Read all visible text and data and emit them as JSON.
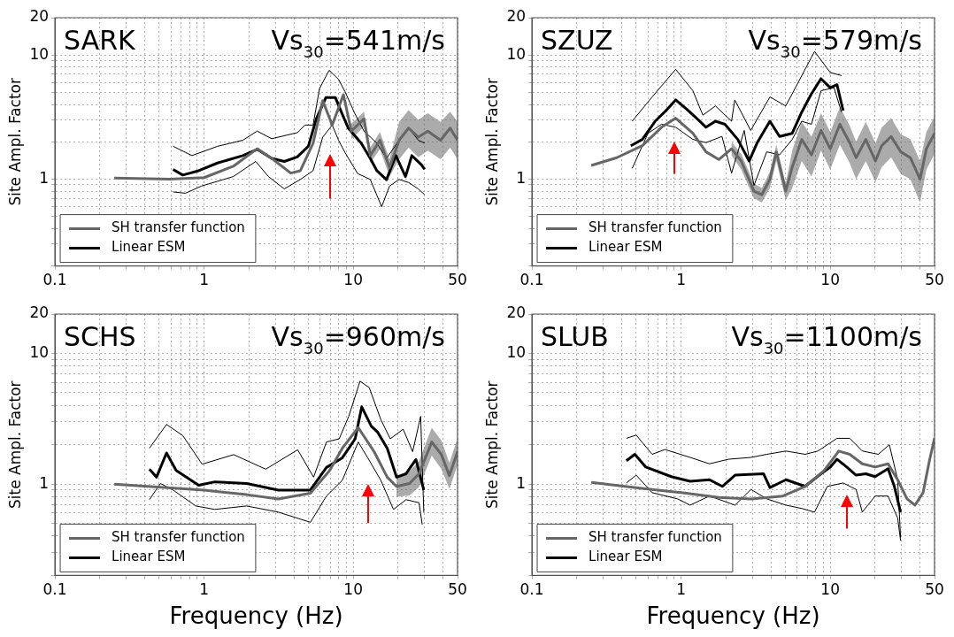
{
  "chart_data": [
    {
      "type": "line",
      "title": "SARK",
      "subtitle": "Vs$_{30}$=541m/s",
      "ylabel": "Site Ampl. Factor",
      "log": "xy",
      "grid": true,
      "legend": "bottom left",
      "xlim": [
        0.1,
        50
      ],
      "xticks": [
        0.1,
        {
          "value": 0.2,
          "label": null
        },
        {
          "value": 0.3,
          "label": null
        },
        {
          "value": 0.4,
          "label": null
        },
        {
          "value": 0.5,
          "label": null
        },
        {
          "value": 0.6,
          "label": null
        },
        {
          "value": 0.7,
          "label": null
        },
        {
          "value": 0.8,
          "label": null
        },
        {
          "value": 0.9,
          "label": null
        },
        1,
        {
          "value": 2,
          "label": null
        },
        {
          "value": 3,
          "label": null
        },
        {
          "value": 4,
          "label": null
        },
        {
          "value": 5,
          "label": null
        },
        {
          "value": 6,
          "label": null
        },
        {
          "value": 7,
          "label": null
        },
        {
          "value": 8,
          "label": null
        },
        {
          "value": 9,
          "label": null
        },
        10,
        {
          "value": 20,
          "label": null
        },
        {
          "value": 30,
          "label": null
        },
        {
          "value": 40,
          "label": null
        },
        50
      ],
      "ylim": [
        0.2,
        20
      ],
      "yticks": [
        {
          "value": 0.2,
          "label": null
        },
        {
          "value": 0.3,
          "label": null
        },
        {
          "value": 0.4,
          "label": null
        },
        {
          "value": 0.5,
          "label": null
        },
        {
          "value": 0.6,
          "label": null
        },
        {
          "value": 0.7,
          "label": null
        },
        {
          "value": 0.8,
          "label": null
        },
        {
          "value": 0.9,
          "label": null
        },
        1,
        {
          "value": 2,
          "label": null
        },
        {
          "value": 3,
          "label": null
        },
        {
          "value": 4,
          "label": null
        },
        {
          "value": 5,
          "label": null
        },
        {
          "value": 6,
          "label": null
        },
        {
          "value": 7,
          "label": null
        },
        {
          "value": 8,
          "label": null
        },
        {
          "value": 9,
          "label": null
        },
        10,
        20
      ],
      "series": [
        {
          "name": "SH transfer function",
          "color": "#666666",
          "x": [
            0.25,
            0.59,
            1.0,
            1.57,
            2.27,
            2.84,
            3.81,
            4.42,
            5.38,
            6.24,
            7.23,
            8.59,
            9.71,
            11.8,
            13,
            15.1,
            17.5,
            20.3,
            23.5,
            27.3,
            31.6,
            38.5,
            44.6,
            50
          ],
          "values": [
            1.02,
            1.0,
            1.03,
            1.27,
            1.76,
            1.47,
            1.12,
            1.17,
            1.95,
            4.29,
            2.73,
            4.8,
            2.44,
            3.06,
            1.55,
            2.06,
            1.24,
            2.06,
            2.58,
            2.18,
            2.44,
            2.06,
            2.58,
            2.06
          ],
          "lower": [
            null,
            null,
            null,
            null,
            null,
            null,
            null,
            null,
            null,
            null,
            null,
            null,
            2.1,
            2.65,
            1.35,
            1.75,
            1.05,
            1.45,
            1.8,
            1.5,
            1.7,
            1.45,
            1.8,
            1.45
          ],
          "upper": [
            null,
            null,
            null,
            null,
            null,
            null,
            null,
            null,
            null,
            null,
            null,
            null,
            2.8,
            3.5,
            1.8,
            2.4,
            1.45,
            2.9,
            3.6,
            3.0,
            3.4,
            2.9,
            3.5,
            2.9
          ]
        },
        {
          "name": "Linear ESM",
          "color": "#000000",
          "x": [
            0.62,
            0.72,
            0.92,
            1.23,
            1.82,
            2.27,
            2.84,
            3.45,
            4.21,
            5.0,
            5.65,
            6.55,
            7.59,
            8.37,
            9.25,
            11.3,
            13.0,
            14.4,
            16.7,
            19.3,
            22.4,
            24.7,
            28.6,
            30.1
          ],
          "values": [
            1.2,
            1.08,
            1.17,
            1.35,
            1.55,
            1.74,
            1.47,
            1.39,
            1.51,
            1.84,
            3.06,
            4.54,
            4.54,
            3.42,
            2.58,
            1.95,
            1.47,
            1.17,
            0.99,
            1.55,
            1.05,
            1.55,
            1.31,
            1.2
          ]
        },
        {
          "color": "#000000",
          "x": [
            0.62,
            0.83,
            1.23,
            1.82,
            2.27,
            2.84,
            4.21,
            4.75,
            5.38,
            5.94,
            6.89,
            7.97,
            8.8,
            10.2,
            11.8,
            14.4,
            16.7,
            20.3,
            23.5,
            27.3,
            30.1
          ],
          "values": [
            1.84,
            1.55,
            1.84,
            2.06,
            2.44,
            2.12,
            2.37,
            2.73,
            2.73,
            5.37,
            7.54,
            6.37,
            5.08,
            3.42,
            2.44,
            1.95,
            1.47,
            2.06,
            2.58,
            2.06,
            1.95
          ]
        },
        {
          "color": "#000000",
          "x": [
            0.62,
            0.75,
            0.96,
            1.57,
            2.22,
            2.7,
            3.45,
            4.42,
            5.38,
            6.24,
            7.23,
            7.97,
            8.8,
            10.7,
            13,
            15.5,
            17.5,
            20.3,
            23.5,
            27.3,
            30.1
          ],
          "values": [
            0.79,
            0.77,
            0.88,
            1.05,
            1.39,
            1.05,
            0.835,
            0.995,
            1.17,
            2.18,
            2.73,
            2.06,
            1.64,
            1.11,
            0.995,
            0.6,
            0.88,
            0.995,
            0.94,
            0.835,
            0.75
          ]
        }
      ]
    },
    {
      "type": "line",
      "title": "SZUZ",
      "subtitle": "Vs$_{30}$=579m/s",
      "ylabel": "Site Ampl. Factor",
      "log": "xy",
      "grid": true,
      "legend": "bottom left",
      "xlim": [
        0.1,
        50
      ],
      "xticks": [
        0.1,
        {
          "value": 0.2,
          "label": null
        },
        {
          "value": 0.3,
          "label": null
        },
        {
          "value": 0.4,
          "label": null
        },
        {
          "value": 0.5,
          "label": null
        },
        {
          "value": 0.6,
          "label": null
        },
        {
          "value": 0.7,
          "label": null
        },
        {
          "value": 0.8,
          "label": null
        },
        {
          "value": 0.9,
          "label": null
        },
        1,
        {
          "value": 2,
          "label": null
        },
        {
          "value": 3,
          "label": null
        },
        {
          "value": 4,
          "label": null
        },
        {
          "value": 5,
          "label": null
        },
        {
          "value": 6,
          "label": null
        },
        {
          "value": 7,
          "label": null
        },
        {
          "value": 8,
          "label": null
        },
        {
          "value": 9,
          "label": null
        },
        10,
        {
          "value": 20,
          "label": null
        },
        {
          "value": 30,
          "label": null
        },
        {
          "value": 40,
          "label": null
        },
        50
      ],
      "ylim": [
        0.2,
        20
      ],
      "yticks": [
        {
          "value": 0.2,
          "label": null
        },
        {
          "value": 0.3,
          "label": null
        },
        {
          "value": 0.4,
          "label": null
        },
        {
          "value": 0.5,
          "label": null
        },
        {
          "value": 0.6,
          "label": null
        },
        {
          "value": 0.7,
          "label": null
        },
        {
          "value": 0.8,
          "label": null
        },
        {
          "value": 0.9,
          "label": null
        },
        1,
        {
          "value": 2,
          "label": null
        },
        {
          "value": 3,
          "label": null
        },
        {
          "value": 4,
          "label": null
        },
        {
          "value": 5,
          "label": null
        },
        {
          "value": 6,
          "label": null
        },
        {
          "value": 7,
          "label": null
        },
        {
          "value": 8,
          "label": null
        },
        {
          "value": 9,
          "label": null
        },
        10,
        20
      ],
      "series": [
        {
          "name": "SH transfer function",
          "color": "#666666",
          "x": [
            0.25,
            0.37,
            0.55,
            0.74,
            0.92,
            1.2,
            1.47,
            1.79,
            2.18,
            2.53,
            3.08,
            3.48,
            3.94,
            4.35,
            5.03,
            5.56,
            6.44,
            7.48,
            8.67,
            10,
            11.6,
            13.5,
            14.9,
            17.3,
            20.1,
            22.1,
            25.6,
            29.7,
            34.4,
            40,
            44.1,
            50
          ],
          "values": [
            1.29,
            1.49,
            1.86,
            2.62,
            3.1,
            2.34,
            1.66,
            1.44,
            1.76,
            1.4,
            0.8,
            0.75,
            1.0,
            1.66,
            0.8,
            1.25,
            2.09,
            1.57,
            2.47,
            1.76,
            2.77,
            1.97,
            1.49,
            2.09,
            1.4,
            1.86,
            2.21,
            1.66,
            1.49,
            1.0,
            1.76,
            2.34
          ],
          "lower": [
            null,
            null,
            null,
            null,
            null,
            null,
            null,
            null,
            1.55,
            1.2,
            0.7,
            0.65,
            0.85,
            1.4,
            0.68,
            0.85,
            1.4,
            1.05,
            1.7,
            1.2,
            1.9,
            1.35,
            1.0,
            1.4,
            0.95,
            1.25,
            1.5,
            1.1,
            1.0,
            0.65,
            1.2,
            1.6
          ],
          "upper": [
            null,
            null,
            null,
            null,
            null,
            null,
            null,
            null,
            2.0,
            1.6,
            0.92,
            0.85,
            1.15,
            1.9,
            0.92,
            1.7,
            2.9,
            2.2,
            3.4,
            2.4,
            3.8,
            2.7,
            2.0,
            2.9,
            1.95,
            2.6,
            3.1,
            2.3,
            2.1,
            1.4,
            2.4,
            3.2
          ]
        },
        {
          "name": "Linear ESM",
          "color": "#000000",
          "x": [
            0.46,
            0.55,
            0.67,
            0.81,
            0.92,
            1.09,
            1.27,
            1.47,
            1.7,
            1.97,
            2.4,
            2.86,
            3.24,
            3.94,
            4.57,
            5.56,
            6.44,
            7.48,
            8.67,
            10,
            11.1,
            12.2
          ],
          "values": [
            1.86,
            2.09,
            2.93,
            3.67,
            4.35,
            3.67,
            3.1,
            2.62,
            2.93,
            2.77,
            2.09,
            1.4,
            1.97,
            2.93,
            2.21,
            2.34,
            3.47,
            4.87,
            6.45,
            5.46,
            5.77,
            3.57
          ]
        },
        {
          "color": "#000000",
          "x": [
            0.47,
            0.64,
            0.92,
            1.2,
            1.4,
            1.7,
            2.18,
            2.29,
            2.93,
            3.94,
            5.03,
            5.84,
            7.48,
            7.85,
            10,
            11.9
          ],
          "values": [
            2.93,
            4.6,
            7.67,
            5.16,
            3.28,
            3.89,
            2.93,
            4.35,
            2.47,
            4.6,
            3.89,
            5.46,
            9.6,
            10.7,
            7.23,
            6.84
          ]
        },
        {
          "color": "#000000",
          "x": [
            0.47,
            0.6,
            0.74,
            0.92,
            1.2,
            1.47,
            1.88,
            2.18,
            2.65,
            3.08,
            3.75,
            4.57,
            5.56,
            6.44,
            7.48,
            8.67,
            10.6,
            11.9
          ],
          "values": [
            1.22,
            2.34,
            2.77,
            2.62,
            2.09,
            1.97,
            2.21,
            1.12,
            2.47,
            0.89,
            1.66,
            1.57,
            2.09,
            2.93,
            2.77,
            5.16,
            5.46,
            3.47
          ]
        }
      ]
    },
    {
      "type": "line",
      "title": "SCHS",
      "subtitle": "Vs$_{30}$=960m/s",
      "xlabel": "Frequency (Hz)",
      "ylabel": "Site Ampl. Factor",
      "log": "xy",
      "grid": true,
      "legend": "bottom left",
      "xlim": [
        0.1,
        50
      ],
      "xticks": [
        0.1,
        {
          "value": 0.2,
          "label": null
        },
        {
          "value": 0.3,
          "label": null
        },
        {
          "value": 0.4,
          "label": null
        },
        {
          "value": 0.5,
          "label": null
        },
        {
          "value": 0.6,
          "label": null
        },
        {
          "value": 0.7,
          "label": null
        },
        {
          "value": 0.8,
          "label": null
        },
        {
          "value": 0.9,
          "label": null
        },
        1,
        {
          "value": 2,
          "label": null
        },
        {
          "value": 3,
          "label": null
        },
        {
          "value": 4,
          "label": null
        },
        {
          "value": 5,
          "label": null
        },
        {
          "value": 6,
          "label": null
        },
        {
          "value": 7,
          "label": null
        },
        {
          "value": 8,
          "label": null
        },
        {
          "value": 9,
          "label": null
        },
        10,
        {
          "value": 20,
          "label": null
        },
        {
          "value": 30,
          "label": null
        },
        {
          "value": 40,
          "label": null
        },
        50
      ],
      "ylim": [
        0.2,
        20
      ],
      "yticks": [
        {
          "value": 0.2,
          "label": null
        },
        {
          "value": 0.3,
          "label": null
        },
        {
          "value": 0.4,
          "label": null
        },
        {
          "value": 0.5,
          "label": null
        },
        {
          "value": 0.6,
          "label": null
        },
        {
          "value": 0.7,
          "label": null
        },
        {
          "value": 0.8,
          "label": null
        },
        {
          "value": 0.9,
          "label": null
        },
        1,
        {
          "value": 2,
          "label": null
        },
        {
          "value": 3,
          "label": null
        },
        {
          "value": 4,
          "label": null
        },
        {
          "value": 5,
          "label": null
        },
        {
          "value": 6,
          "label": null
        },
        {
          "value": 7,
          "label": null
        },
        {
          "value": 8,
          "label": null
        },
        {
          "value": 9,
          "label": null
        },
        10,
        20
      ],
      "series": [
        {
          "name": "SH transfer function",
          "color": "#666666",
          "x": [
            0.25,
            1.0,
            1.93,
            3.15,
            5.16,
            6.95,
            8.45,
            10.8,
            13.8,
            16.9,
            19.5,
            23.8,
            27.6,
            33.6,
            39,
            44.1,
            50
          ],
          "values": [
            1.0,
            0.9,
            0.83,
            0.77,
            0.85,
            1.27,
            1.88,
            2.71,
            1.77,
            1.13,
            0.96,
            1.01,
            1.2,
            2.1,
            1.68,
            1.16,
            1.77
          ],
          "lower": [
            null,
            null,
            null,
            null,
            null,
            null,
            null,
            null,
            null,
            null,
            0.8,
            0.82,
            0.95,
            1.65,
            1.3,
            0.92,
            1.4
          ],
          "upper": [
            null,
            null,
            null,
            null,
            null,
            null,
            null,
            null,
            null,
            null,
            1.15,
            1.25,
            1.5,
            2.7,
            2.15,
            1.45,
            2.25
          ]
        },
        {
          "name": "Linear ESM",
          "color": "#000000",
          "x": [
            0.43,
            0.48,
            0.56,
            0.65,
            0.92,
            1.18,
            1.93,
            3.15,
            5.16,
            6.61,
            8.45,
            10.3,
            11.4,
            13.2,
            14.6,
            16.9,
            19.5,
            22.6,
            26.3,
            29.7
          ],
          "values": [
            1.3,
            1.13,
            1.73,
            1.27,
            0.98,
            1.04,
            1.01,
            0.9,
            0.9,
            1.34,
            1.59,
            2.22,
            3.9,
            2.78,
            2.49,
            1.88,
            1.13,
            1.2,
            1.54,
            0.9
          ]
        },
        {
          "color": "#000000",
          "x": [
            0.43,
            0.56,
            0.72,
            0.97,
            1.58,
            2.59,
            4.24,
            5.42,
            6.61,
            8.05,
            9.33,
            11.1,
            12.8,
            15.3,
            17.7,
            21.6,
            25,
            28.3,
            29.7
          ],
          "values": [
            1.88,
            2.86,
            2.35,
            1.42,
            1.68,
            1.3,
            1.83,
            1.13,
            2.1,
            2.22,
            3.3,
            6.13,
            5.47,
            3.12,
            2.22,
            2.63,
            1.77,
            3.3,
            0.61
          ]
        },
        {
          "color": "#000000",
          "x": [
            0.43,
            0.51,
            0.62,
            0.88,
            1.18,
            1.93,
            3.15,
            5.16,
            6.61,
            8.45,
            10.8,
            12.5,
            15.3,
            18.6,
            22.6,
            27.6,
            29
          ],
          "values": [
            0.76,
            1.01,
            0.9,
            0.68,
            0.64,
            0.68,
            0.61,
            0.51,
            0.81,
            1.07,
            2.1,
            1.59,
            1.07,
            0.64,
            0.76,
            0.72,
            0.49
          ]
        }
      ]
    },
    {
      "type": "line",
      "title": "SLUB",
      "subtitle": "Vs$_{30}$=1100m/s",
      "xlabel": "Frequency (Hz)",
      "ylabel": "Site Ampl. Factor",
      "log": "xy",
      "grid": true,
      "legend": "bottom left",
      "xlim": [
        0.1,
        50
      ],
      "xticks": [
        0.1,
        {
          "value": 0.2,
          "label": null
        },
        {
          "value": 0.3,
          "label": null
        },
        {
          "value": 0.4,
          "label": null
        },
        {
          "value": 0.5,
          "label": null
        },
        {
          "value": 0.6,
          "label": null
        },
        {
          "value": 0.7,
          "label": null
        },
        {
          "value": 0.8,
          "label": null
        },
        {
          "value": 0.9,
          "label": null
        },
        1,
        {
          "value": 2,
          "label": null
        },
        {
          "value": 3,
          "label": null
        },
        {
          "value": 4,
          "label": null
        },
        {
          "value": 5,
          "label": null
        },
        {
          "value": 6,
          "label": null
        },
        {
          "value": 7,
          "label": null
        },
        {
          "value": 8,
          "label": null
        },
        {
          "value": 9,
          "label": null
        },
        10,
        {
          "value": 20,
          "label": null
        },
        {
          "value": 30,
          "label": null
        },
        {
          "value": 40,
          "label": null
        },
        50
      ],
      "ylim": [
        0.2,
        20
      ],
      "yticks": [
        {
          "value": 0.2,
          "label": null
        },
        {
          "value": 0.3,
          "label": null
        },
        {
          "value": 0.4,
          "label": null
        },
        {
          "value": 0.5,
          "label": null
        },
        {
          "value": 0.6,
          "label": null
        },
        {
          "value": 0.7,
          "label": null
        },
        {
          "value": 0.8,
          "label": null
        },
        {
          "value": 0.9,
          "label": null
        },
        1,
        {
          "value": 2,
          "label": null
        },
        {
          "value": 3,
          "label": null
        },
        {
          "value": 4,
          "label": null
        },
        {
          "value": 5,
          "label": null
        },
        {
          "value": 6,
          "label": null
        },
        {
          "value": 7,
          "label": null
        },
        {
          "value": 8,
          "label": null
        },
        {
          "value": 9,
          "label": null
        },
        10,
        20
      ],
      "series": [
        {
          "name": "SH transfer function",
          "color": "#666666",
          "x": [
            0.25,
            0.53,
            1.0,
            1.79,
            2.94,
            4.81,
            6.78,
            9.1,
            11.4,
            13.5,
            16.4,
            20,
            24.4,
            28.3,
            32.7,
            37,
            41.9,
            46.2,
            50
          ],
          "values": [
            1.03,
            0.93,
            0.86,
            0.79,
            0.77,
            0.81,
            0.96,
            1.27,
            1.79,
            1.69,
            1.43,
            1.35,
            1.43,
            1.08,
            0.77,
            0.69,
            0.86,
            1.51,
            2.24
          ]
        },
        {
          "name": "Linear ESM",
          "color": "#000000",
          "x": [
            0.43,
            0.49,
            0.58,
            0.86,
            1.15,
            1.55,
            1.89,
            2.3,
            3.57,
            3.94,
            5.05,
            6.78,
            8.67,
            10,
            11.1,
            12.9,
            14.9,
            17.3,
            20,
            24.4,
            26.9,
            29.6
          ],
          "values": [
            1.51,
            1.69,
            1.35,
            1.14,
            1.05,
            1.08,
            0.96,
            1.17,
            1.2,
            0.94,
            1.08,
            0.96,
            1.2,
            1.35,
            1.55,
            1.35,
            1.17,
            1.2,
            1.14,
            1.31,
            0.96,
            0.61
          ]
        },
        {
          "color": "#000000",
          "x": [
            0.43,
            0.5,
            0.64,
            0.78,
            1.15,
            1.55,
            2.08,
            2.94,
            3.76,
            5.05,
            6.78,
            8.26,
            11.1,
            13.5,
            16.4,
            21,
            24.9,
            28.3,
            29.6
          ],
          "values": [
            2.24,
            2.37,
            1.69,
            1.84,
            1.6,
            1.43,
            1.55,
            1.6,
            1.69,
            1.79,
            1.69,
            1.79,
            2.24,
            2.24,
            1.79,
            1.69,
            2.0,
            1.08,
            0.39
          ]
        },
        {
          "color": "#000000",
          "x": [
            0.43,
            0.5,
            0.64,
            0.95,
            1.15,
            1.55,
            2.3,
            2.94,
            3.76,
            5.05,
            6.46,
            7.85,
            9.57,
            12.2,
            14.9,
            16.4,
            20,
            24.4,
            28.3,
            29.6
          ],
          "values": [
            1.02,
            1.17,
            0.86,
            0.77,
            0.69,
            0.81,
            0.69,
            0.91,
            0.77,
            0.69,
            0.65,
            0.61,
            0.96,
            1.02,
            0.91,
            0.61,
            0.81,
            0.81,
            0.55,
            0.37
          ]
        }
      ]
    }
  ]
}
